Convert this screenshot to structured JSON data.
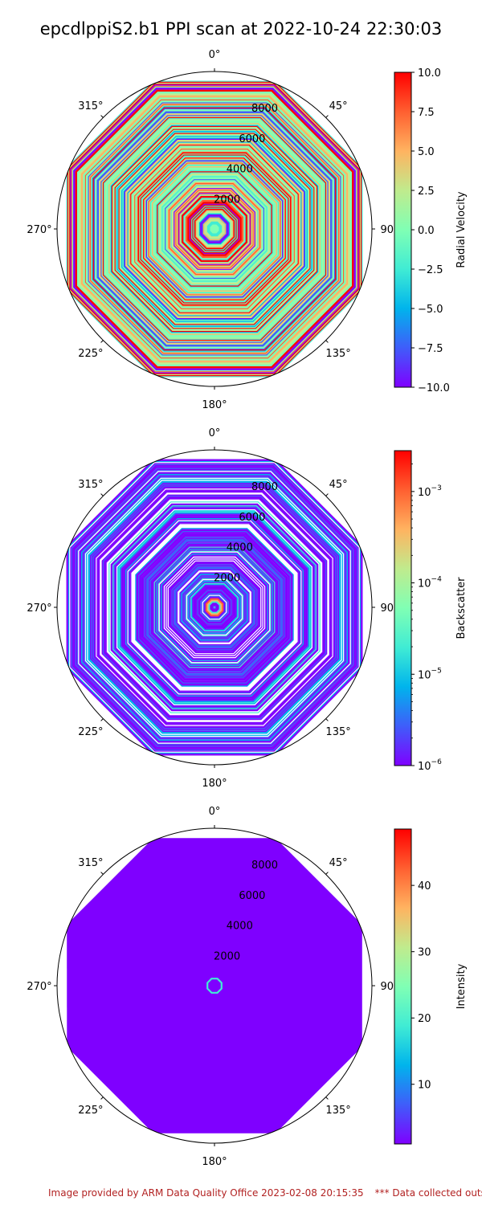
{
  "title": "epcdlppiS2.b1 PPI scan at 2022-10-24 22:30:03",
  "footer": {
    "provided": "Image provided by ARM Data Quality Office 2023-02-08 20:15:35",
    "note": "*** Data collected outside"
  },
  "colors": {
    "colormap": "rainbow",
    "palette": [
      "#7f00ff",
      "#3f5dfa",
      "#00b4ec",
      "#40ecd4",
      "#80ffb4",
      "#c0eb8d",
      "#ffb360",
      "#ff5f30",
      "#ff0000"
    ],
    "footer_text": "#b22222"
  },
  "chart_data": [
    {
      "type": "heatmap",
      "projection": "polar",
      "theta_zero": "N",
      "theta_direction": "clockwise",
      "angle_ticks": [
        "0°",
        "45°",
        "90°",
        "135°",
        "180°",
        "225°",
        "270°",
        "315°"
      ],
      "radial_ticks": [
        "2000",
        "4000",
        "6000",
        "8000"
      ],
      "radial_tick_values": [
        2000,
        4000,
        6000,
        8000
      ],
      "rmax": 9600,
      "scan_sides": 8,
      "colorbar": {
        "label": "Radial Velocity",
        "scale": "linear",
        "range": [
          -10,
          10
        ],
        "ticks": [
          "−10.0",
          "−7.5",
          "−5.0",
          "−2.5",
          "0.0",
          "2.5",
          "5.0",
          "7.5",
          "10.0"
        ],
        "tick_values": [
          -10,
          -7.5,
          -5,
          -2.5,
          0,
          2.5,
          5,
          7.5,
          10
        ]
      },
      "pattern": "stripes",
      "rings": 150,
      "weights": [
        3,
        2,
        2,
        3,
        10,
        6,
        3,
        3,
        5
      ],
      "seed": 7,
      "center_blob": null
    },
    {
      "type": "heatmap",
      "projection": "polar",
      "theta_zero": "N",
      "theta_direction": "clockwise",
      "angle_ticks": [
        "0°",
        "45°",
        "90°",
        "135°",
        "180°",
        "225°",
        "270°",
        "315°"
      ],
      "radial_ticks": [
        "2000",
        "4000",
        "6000",
        "8000"
      ],
      "radial_tick_values": [
        2000,
        4000,
        6000,
        8000
      ],
      "rmax": 9600,
      "scan_sides": 8,
      "colorbar": {
        "label": "Backscatter",
        "scale": "log",
        "range": [
          1e-06,
          0.0028
        ],
        "ticks": [
          "10−6",
          "10−5",
          "10−4",
          "10−3"
        ],
        "tick_values": [
          1e-06,
          1e-05,
          0.0001,
          0.001
        ]
      },
      "pattern": "stripes-blue",
      "rings": 150,
      "weights": [
        10,
        4,
        2,
        1,
        0,
        0,
        0,
        0,
        0
      ],
      "seed": 11,
      "center_blob": "multi"
    },
    {
      "type": "heatmap",
      "projection": "polar",
      "theta_zero": "N",
      "theta_direction": "clockwise",
      "angle_ticks": [
        "0°",
        "45°",
        "90°",
        "135°",
        "180°",
        "225°",
        "270°",
        "315°"
      ],
      "radial_ticks": [
        "2000",
        "4000",
        "6000",
        "8000"
      ],
      "radial_tick_values": [
        2000,
        4000,
        6000,
        8000
      ],
      "rmax": 9600,
      "scan_sides": 8,
      "colorbar": {
        "label": "Intensity",
        "scale": "linear",
        "range": [
          1,
          48.5
        ],
        "ticks": [
          "10",
          "20",
          "30",
          "40"
        ],
        "tick_values": [
          10,
          20,
          30,
          40
        ]
      },
      "pattern": "solid",
      "center_blob": "ring"
    }
  ]
}
